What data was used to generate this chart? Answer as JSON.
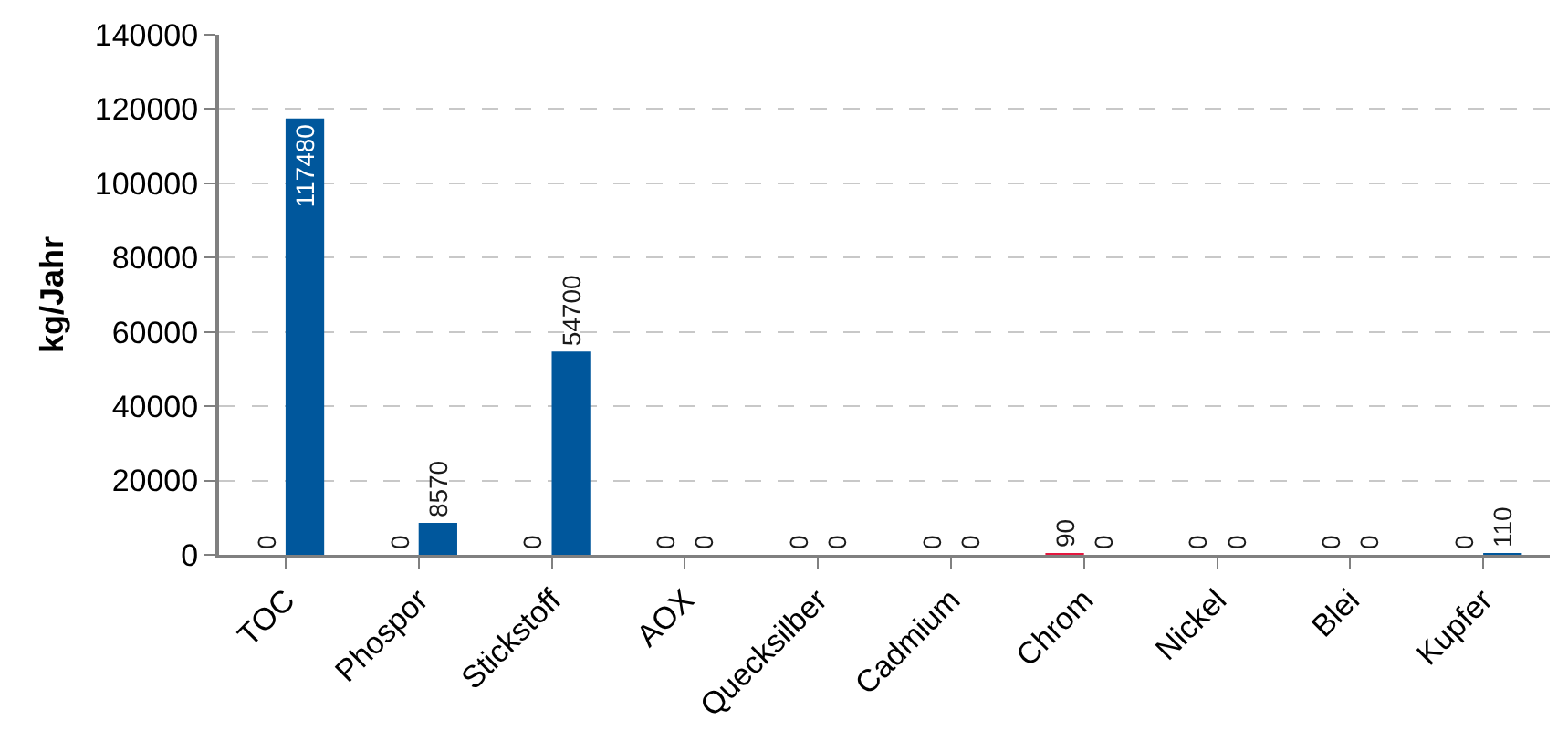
{
  "chart_data": {
    "type": "bar",
    "ylabel": "kg/Jahr",
    "categories": [
      "TOC",
      "Phospor",
      "Stickstoff",
      "AOX",
      "Quecksilber",
      "Cadmium",
      "Chrom",
      "Nickel",
      "Blei",
      "Kupfer"
    ],
    "ylim": [
      0,
      140000
    ],
    "yticks": [
      0,
      20000,
      40000,
      60000,
      80000,
      100000,
      120000,
      140000
    ],
    "grid": "y",
    "data_labels": true,
    "series": [
      {
        "color": "#e3173e",
        "values": [
          0,
          0,
          0,
          0,
          0,
          0,
          90,
          0,
          0,
          0
        ]
      },
      {
        "color": "#00579c",
        "values": [
          117480,
          8570,
          54700,
          0,
          0,
          0,
          0,
          0,
          0,
          110
        ]
      }
    ]
  }
}
